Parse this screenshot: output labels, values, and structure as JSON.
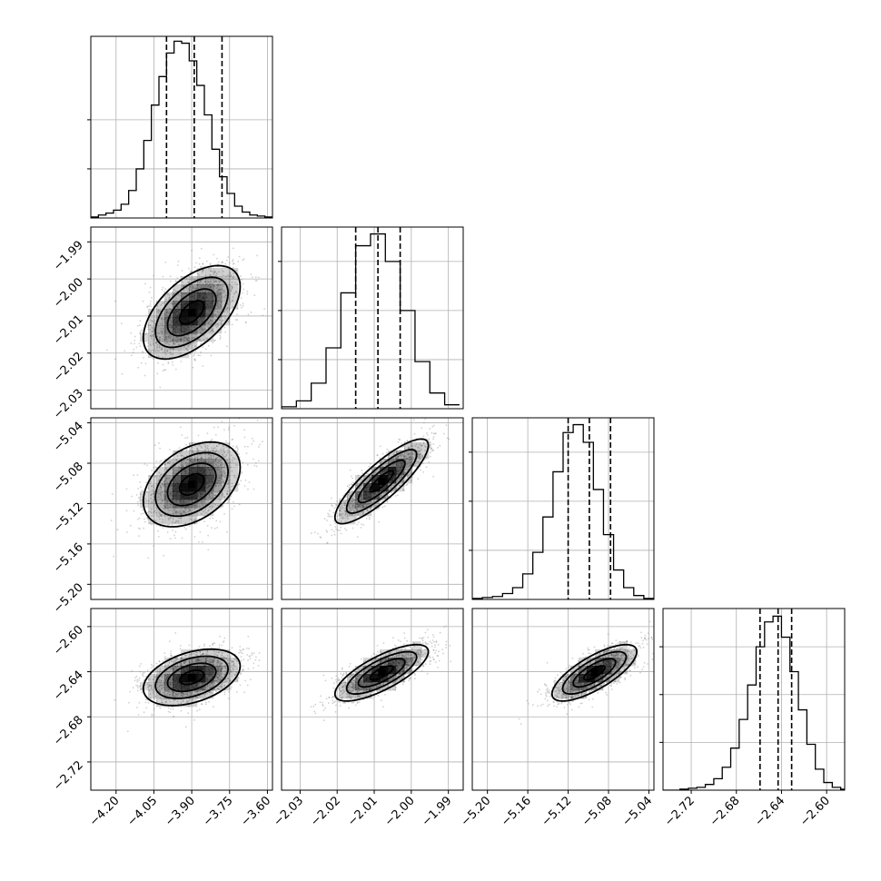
{
  "chart_data": {
    "type": "corner",
    "params": [
      {
        "range": [
          -4.3,
          -3.58
        ],
        "ticks": [
          -4.2,
          -4.05,
          -3.9,
          -3.75,
          -3.6
        ],
        "tick_labels": [
          "−4.20",
          "−4.05",
          "−3.90",
          "−3.75",
          "−3.60"
        ],
        "quantiles": [
          -4.0,
          -3.89,
          -3.78
        ],
        "mean": -3.885,
        "sd": 0.096
      },
      {
        "range": [
          -2.035,
          -1.986
        ],
        "ticks": [
          -2.03,
          -2.02,
          -2.01,
          -2.0,
          -1.99
        ],
        "tick_labels": [
          "−2.03",
          "−2.02",
          "−2.01",
          "−2.00",
          "−1.99"
        ],
        "quantiles": [
          -2.015,
          -2.009,
          -2.003
        ],
        "mean": -2.009,
        "sd": 0.0063
      },
      {
        "range": [
          -5.215,
          -5.035
        ],
        "ticks": [
          -5.2,
          -5.16,
          -5.12,
          -5.08,
          -5.04
        ],
        "tick_labels": [
          "−5.20",
          "−5.16",
          "−5.12",
          "−5.08",
          "−5.04"
        ],
        "quantiles": [
          -5.12,
          -5.099,
          -5.078
        ],
        "mean": -5.099,
        "sd": 0.021
      },
      {
        "range": [
          -2.745,
          -2.584
        ],
        "ticks": [
          -2.72,
          -2.68,
          -2.64,
          -2.6
        ],
        "tick_labels": [
          "−2.72",
          "−2.68",
          "−2.64",
          "−2.60"
        ],
        "quantiles": [
          -2.659,
          -2.643,
          -2.631
        ],
        "mean": -2.644,
        "sd": 0.0125
      }
    ],
    "histograms": [
      {
        "param": 0,
        "bin_edges": [
          -4.3,
          -4.27,
          -4.24,
          -4.21,
          -4.18,
          -4.15,
          -4.12,
          -4.09,
          -4.06,
          -4.03,
          -4.0,
          -3.97,
          -3.94,
          -3.91,
          -3.88,
          -3.85,
          -3.82,
          -3.79,
          -3.76,
          -3.73,
          -3.7,
          -3.67,
          -3.64,
          -3.61,
          -3.58
        ],
        "counts": [
          1,
          3,
          5,
          8,
          14,
          28,
          50,
          79,
          115,
          144,
          168,
          180,
          178,
          160,
          135,
          105,
          70,
          42,
          25,
          12,
          6,
          3,
          2,
          1
        ],
        "ymax": 185,
        "yticks": [
          50,
          100
        ]
      },
      {
        "param": 1,
        "bin_edges": [
          -2.035,
          -2.031,
          -2.027,
          -2.023,
          -2.019,
          -2.015,
          -2.011,
          -2.007,
          -2.003,
          -1.999,
          -1.995,
          -1.991,
          -1.987
        ],
        "counts": [
          2,
          8,
          26,
          62,
          118,
          166,
          178,
          150,
          100,
          48,
          16,
          4
        ],
        "ymax": 185,
        "yticks": [
          50,
          100,
          150
        ]
      },
      {
        "param": 2,
        "bin_edges": [
          -5.215,
          -5.205,
          -5.195,
          -5.185,
          -5.175,
          -5.165,
          -5.155,
          -5.145,
          -5.135,
          -5.125,
          -5.115,
          -5.105,
          -5.095,
          -5.085,
          -5.075,
          -5.065,
          -5.055,
          -5.045,
          -5.035
        ],
        "counts": [
          1,
          2,
          3,
          6,
          12,
          26,
          48,
          84,
          130,
          170,
          178,
          160,
          112,
          66,
          30,
          12,
          4,
          1
        ],
        "ymax": 185,
        "yticks": [
          50,
          100,
          150
        ]
      },
      {
        "param": 3,
        "bin_edges": [
          -2.745,
          -2.7375,
          -2.73,
          -2.7225,
          -2.715,
          -2.7075,
          -2.7,
          -2.6925,
          -2.685,
          -2.6775,
          -2.67,
          -2.6625,
          -2.655,
          -2.6475,
          -2.64,
          -2.6325,
          -2.625,
          -2.6175,
          -2.61,
          -2.6025,
          -2.595,
          -2.5875,
          -2.58
        ],
        "counts": [
          0,
          0,
          1,
          2,
          3,
          6,
          12,
          24,
          44,
          74,
          110,
          150,
          176,
          182,
          160,
          124,
          84,
          48,
          22,
          8,
          3,
          1
        ],
        "ymax": 190,
        "yticks": [
          50,
          100,
          150
        ]
      }
    ],
    "pairs": [
      {
        "x_param": 0,
        "y_param": 1,
        "peak": [
          -3.9,
          -2.009
        ],
        "correlation": 0.55
      },
      {
        "x_param": 0,
        "y_param": 2,
        "peak": [
          -3.9,
          -5.101
        ],
        "correlation": 0.4
      },
      {
        "x_param": 1,
        "y_param": 2,
        "peak": [
          -2.008,
          -5.098
        ],
        "correlation": 0.85
      },
      {
        "x_param": 0,
        "y_param": 3,
        "peak": [
          -3.9,
          -2.645
        ],
        "correlation": 0.4
      },
      {
        "x_param": 1,
        "y_param": 3,
        "peak": [
          -2.008,
          -2.641
        ],
        "correlation": 0.75
      },
      {
        "x_param": 2,
        "y_param": 3,
        "peak": [
          -5.094,
          -2.641
        ],
        "correlation": 0.75
      }
    ],
    "contour_levels_sigma": [
      0.5,
      1.0,
      1.5,
      2.0
    ],
    "grid": true,
    "colors": {
      "line": "#000000",
      "grid": "#b0b0b0",
      "scatter": "#7a7a7a",
      "density": "#000000"
    }
  }
}
